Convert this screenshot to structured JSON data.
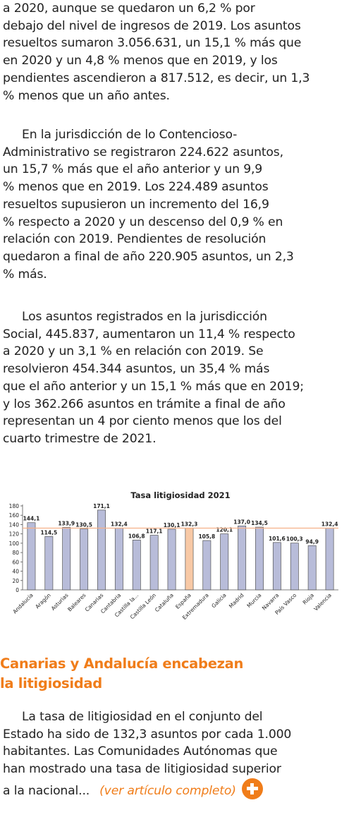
{
  "article": {
    "p1": "a 2020, aunque se quedaron un 6,2 % por\ndebajo del nivel de ingresos de 2019. Los asuntos\nresueltos sumaron 3.056.631, un 15,1 % más que\nen 2020 y un 4,8 % menos que en 2019, y los\npendientes ascendieron a 817.512, es decir, un 1,3\n% menos que un año antes.",
    "p2": "En la jurisdicción de lo Contencioso-\nAdministrativo se registraron 224.622 asuntos,\nun 15,7 % más que el año anterior y un 9,9\n% menos que en 2019. Los 224.489 asuntos\nresueltos supusieron un incremento del 16,9\n% respecto a 2020 y un descenso del 0,9 % en\nrelación con 2019. Pendientes de resolución\nquedaron a final de año 220.905 asuntos, un 2,3\n% más.",
    "p3": "Los asuntos registrados en la jurisdicción\nSocial, 445.837, aumentaron un 11,4 % respecto\na 2020 y un 3,1 % en relación con 2019. Se\nresolvieron 454.344 asuntos, un 35,4 % más\nque el año anterior y un 15,1 % más que en 2019;\ny los 362.266 asuntos en trámite a final de año\nrepresentan un 4 por ciento menos que los del\ncuarto trimestre de 2021.",
    "section_title": "Canarias y Andalucía encabezan\nla litigiosidad",
    "p4": "La tasa de litigiosidad en el conjunto del\nEstado ha sido de 132,3 asuntos por cada 1.000\nhabitantes. Las Comunidades Autónomas que\nhan mostrado una tasa de litigiosidad superior\na la nacional...",
    "read_more": "(ver artículo completo)",
    "read_more_icon": "plus-circle-icon"
  },
  "colors": {
    "accent": "#f07d1a",
    "bar_fill": "#b8bcd9",
    "bar_highlight": "#f8c9a6",
    "reference_line": "#f5b088"
  },
  "chart_data": {
    "type": "bar",
    "title": "Tasa litigiosidad 2021",
    "categories": [
      "Andalucía",
      "Aragón",
      "Asturias",
      "Baleares",
      "Canarias",
      "Cantabria",
      "Castilla la...",
      "Castilla León",
      "Cataluña",
      "España",
      "Extremadura",
      "Galicia",
      "Madrid",
      "Murcia",
      "Navarra",
      "País Vasco",
      "Rioja",
      "Valencia"
    ],
    "values": [
      144.1,
      114.5,
      133.9,
      130.5,
      171.1,
      132.4,
      106.8,
      117.1,
      130.1,
      132.3,
      105.8,
      120.1,
      137.0,
      134.5,
      101.6,
      100.3,
      94.9,
      132.4
    ],
    "value_labels": [
      "144,1",
      "114,5",
      "133,9",
      "130,5",
      "171,1",
      "132,4",
      "106,8",
      "117,1",
      "130,1",
      "132,3",
      "105,8",
      "120,1",
      "137,0",
      "134,5",
      "101,6",
      "100,3",
      "94,9",
      "132,4"
    ],
    "highlight_category": "España",
    "reference_value": 132.3,
    "ylim": [
      0,
      180
    ],
    "yticks": [
      0,
      20,
      40,
      60,
      80,
      100,
      120,
      140,
      160,
      180
    ],
    "xlabel": "",
    "ylabel": "",
    "grid": false,
    "legend": "none"
  }
}
